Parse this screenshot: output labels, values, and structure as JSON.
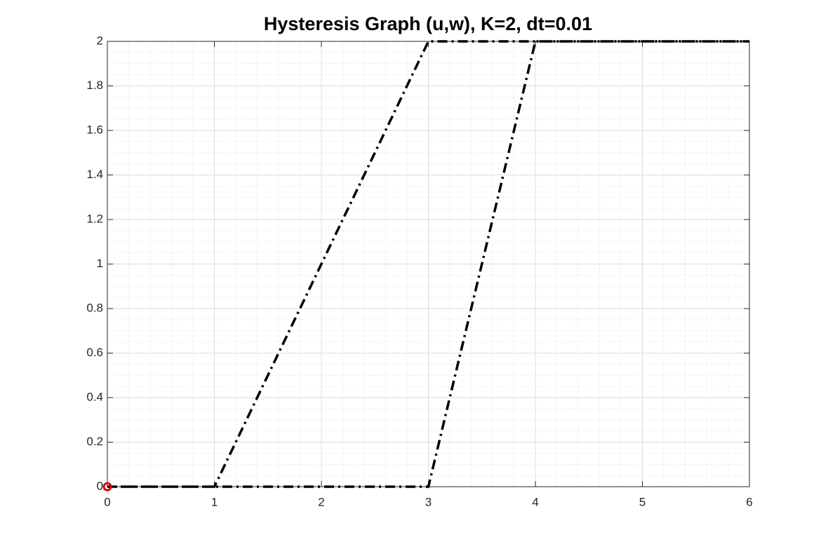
{
  "chart_data": {
    "type": "line",
    "title": "Hysteresis Graph (u,w), K=2, dt=0.01",
    "x": [
      0,
      1,
      3,
      4,
      6,
      4,
      3,
      1,
      0
    ],
    "series": [
      {
        "color": "#000000",
        "values": [
          0,
          0,
          2,
          2,
          2,
          2,
          0,
          0,
          0
        ]
      }
    ],
    "line_style": "dash-dot",
    "start_marker_color": "#e00000",
    "xlim": [
      0,
      6
    ],
    "xticks": [
      0,
      1,
      2,
      3,
      4,
      5,
      6
    ],
    "ylim": [
      0,
      2
    ],
    "yticks": [
      0,
      0.2,
      0.4,
      0.6,
      0.8,
      1,
      1.2,
      1.4,
      1.6,
      1.8,
      2
    ],
    "grid": true,
    "minor_grid": true
  }
}
